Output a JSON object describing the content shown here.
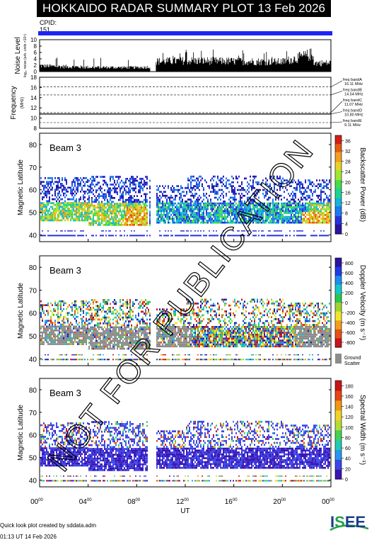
{
  "header": {
    "title": "HOKKAIDO RADAR SUMMARY PLOT",
    "date": "13 Feb 2026"
  },
  "cpid": {
    "label": "CPID:",
    "value": "151"
  },
  "watermark": "NOT FOR PUBLICATION",
  "footer": {
    "line1": "Quick look plot created by sddata.adm",
    "line2": "01:13 UT 14 Feb 2026"
  },
  "logo": {
    "text": "ISEE",
    "colors": [
      "#1a3f8c",
      "#27a04a",
      "#1a3f8c",
      "#1a3f8c"
    ]
  },
  "colors": {
    "cpid_bar": "#1d24f5",
    "ground_scatter": "#8c8c8c"
  },
  "chart_data": [
    {
      "type": "bar",
      "panel": "noise",
      "ylabel": "Noise Level",
      "ylabel_sub": "log₁₀ noise (arb. units ×10⁴)",
      "ylim": [
        0,
        10
      ],
      "yticks": [
        0,
        2,
        4,
        6,
        8,
        10
      ],
      "x_hours": [
        0,
        4,
        8,
        9.1,
        9.5,
        12,
        16,
        20,
        22.4,
        22.6,
        24
      ],
      "values": [
        2.0,
        1.5,
        1.4,
        1.6,
        3.5,
        3.8,
        3.6,
        3.4,
        6.0,
        3.0,
        3.0
      ]
    },
    {
      "type": "scatter",
      "panel": "frequency",
      "ylabel": "Frequency",
      "ylabel_unit": "(MHz)",
      "ylim": [
        8,
        18
      ],
      "yticks": [
        8,
        10,
        12,
        14,
        16,
        18
      ],
      "bands": [
        {
          "label": "freq bandA",
          "value": "16.11 MHz",
          "mhz": 16.11
        },
        {
          "label": "freq bandB",
          "value": "14.54 MHz",
          "mhz": 14.54
        },
        {
          "label": "freq bandC",
          "value": "11.07 MHz",
          "mhz": 11.07
        },
        {
          "label": "freq bandD",
          "value": "10.80 MHz",
          "mhz": 10.8
        },
        {
          "label": "freq bandE",
          "value": "9.11 MHz",
          "mhz": 9.11
        }
      ],
      "used_mhz": 10.8
    },
    {
      "type": "heatmap",
      "panel": "power",
      "beam_label": "Beam  3",
      "ylabel": "Magnetic Latitude",
      "ylim": [
        37,
        85
      ],
      "yticks": [
        40,
        50,
        60,
        70,
        80
      ],
      "colorbar_label": "Backscatter Power (dB)",
      "colorbar_ticks": [
        "0",
        "4",
        "8",
        "12",
        "16",
        "20",
        "24",
        "28",
        "32",
        "36"
      ],
      "colorbar_range": [
        0,
        38
      ]
    },
    {
      "type": "heatmap",
      "panel": "velocity",
      "beam_label": "Beam  3",
      "ylabel": "Magnetic Latitude",
      "ylim": [
        37,
        85
      ],
      "yticks": [
        40,
        50,
        60,
        70,
        80
      ],
      "colorbar_label": "Doppler Velocity (m s⁻¹)",
      "colorbar_ticks": [
        "800",
        "600",
        "400",
        "200",
        "0",
        "-200",
        "-400",
        "-600",
        "-800"
      ],
      "colorbar_range": [
        -900,
        900
      ],
      "ground_scatter_label": [
        "Ground",
        "Scatter"
      ]
    },
    {
      "type": "heatmap",
      "panel": "width",
      "beam_label": "Beam  3",
      "ylabel": "Magnetic Latitude",
      "ylim": [
        37,
        85
      ],
      "yticks": [
        40,
        50,
        60,
        70,
        80
      ],
      "colorbar_label": "Spectral Width (m s⁻¹)",
      "colorbar_ticks": [
        "0",
        "20",
        "40",
        "60",
        "80",
        "100",
        "120",
        "140",
        "160",
        "180"
      ],
      "colorbar_range": [
        0,
        190
      ]
    }
  ],
  "xaxis": {
    "label": "UT",
    "range_hours": [
      0,
      24
    ],
    "ticks": [
      {
        "hour": 0,
        "text": "00",
        "sup": "00"
      },
      {
        "hour": 4,
        "text": "04",
        "sup": "00"
      },
      {
        "hour": 8,
        "text": "08",
        "sup": "00"
      },
      {
        "hour": 12,
        "text": "12",
        "sup": "00"
      },
      {
        "hour": 16,
        "text": "16",
        "sup": "00"
      },
      {
        "hour": 20,
        "text": "20",
        "sup": "00"
      },
      {
        "hour": 24,
        "text": "00",
        "sup": "00"
      }
    ],
    "data_gap_hours": [
      9.1,
      9.6
    ]
  }
}
